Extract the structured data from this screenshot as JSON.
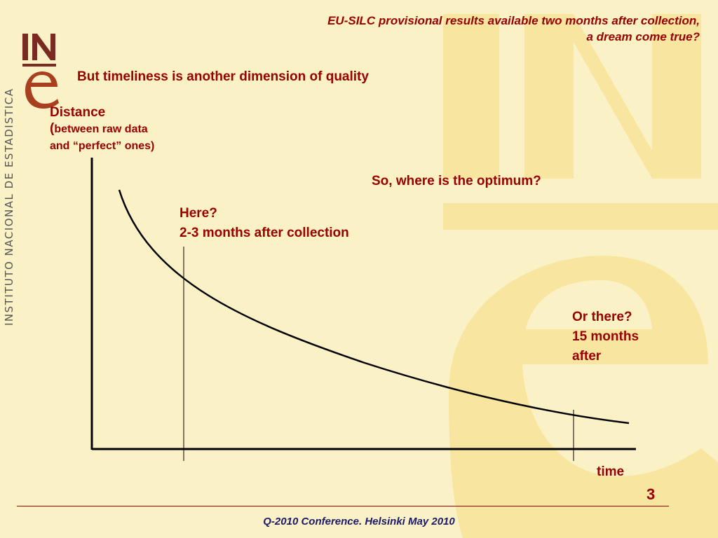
{
  "header": {
    "title_line1": "EU-SILC provisional results available two months after collection,",
    "title_line2": "a dream come true?"
  },
  "logo": {
    "text_top": "IN",
    "text_bottom": "e",
    "side_text": "INSTITUTO NACIONAL DE ESTADISTICA",
    "watermark_text": "INe"
  },
  "subtitle": "But timeliness is another dimension of quality",
  "diagram": {
    "y_axis_label": "Distance",
    "y_axis_sublabel_line1": "between raw data",
    "y_axis_sublabel_line2": "and “perfect” ones)",
    "x_axis_label": "time",
    "question": "So, where is the optimum?",
    "here_line1": "Here?",
    "here_line2": "2-3 months after collection",
    "there_line1": "Or there?",
    "there_line2": "15 months",
    "there_line3": "after"
  },
  "page_number": "3",
  "footer": "Q-2010 Conference. Helsinki  May 2010",
  "colors": {
    "background": "#FBF1C7",
    "text_accent": "#990000",
    "footer_text": "#1A1A66",
    "watermark": "#F8E6A0"
  }
}
